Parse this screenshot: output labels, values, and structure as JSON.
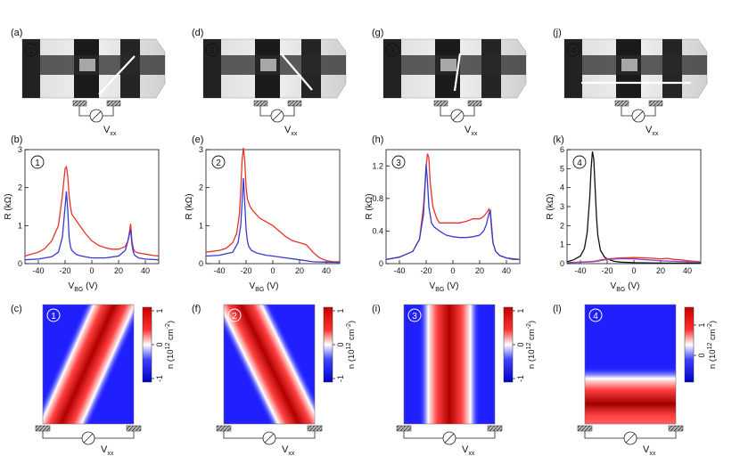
{
  "figure": {
    "columns": [
      {
        "id": 1,
        "device_circle": "1",
        "panel_labels": {
          "device": "(a)",
          "transport": "(b)",
          "map": "(c)"
        },
        "vxx_label": "V",
        "vxx_sub": "xx",
        "chart_data": {
          "type": "line",
          "xlabel": "V",
          "xlabel_sub": "BG",
          "xlabel_unit": " (V)",
          "ylabel": "R (kΩ)",
          "xlim": [
            -50,
            50
          ],
          "ylim": [
            0,
            3
          ],
          "xticks": [
            -40,
            -20,
            0,
            20,
            40
          ],
          "yticks": [
            0,
            1,
            2,
            3
          ],
          "ytick_labels": [
            "0",
            "1",
            "2",
            "3"
          ],
          "series": [
            {
              "name": "red",
              "color": "#e8322a",
              "x": [
                -50,
                -45,
                -40,
                -35,
                -30,
                -25,
                -22,
                -20,
                -19,
                -18,
                -17,
                -16,
                -15,
                -12,
                -10,
                -5,
                0,
                5,
                10,
                15,
                20,
                25,
                27,
                28,
                29,
                30,
                31,
                32,
                35,
                40,
                45,
                50
              ],
              "y": [
                0.2,
                0.25,
                0.3,
                0.4,
                0.6,
                1.0,
                1.8,
                2.5,
                2.55,
                2.3,
                1.8,
                1.5,
                1.3,
                1.15,
                1.05,
                0.8,
                0.6,
                0.48,
                0.42,
                0.38,
                0.38,
                0.45,
                0.6,
                0.8,
                1.05,
                0.6,
                0.4,
                0.32,
                0.28,
                0.25,
                0.22,
                0.2
              ]
            },
            {
              "name": "blue",
              "color": "#3a3ad0",
              "x": [
                -50,
                -40,
                -30,
                -25,
                -22,
                -20,
                -19,
                -18,
                -17,
                -16,
                -15,
                -12,
                -10,
                -5,
                0,
                10,
                20,
                25,
                27,
                28,
                29,
                30,
                31,
                32,
                35,
                40,
                50
              ],
              "y": [
                0.1,
                0.12,
                0.18,
                0.3,
                0.7,
                1.5,
                1.9,
                1.4,
                0.7,
                0.45,
                0.35,
                0.25,
                0.22,
                0.18,
                0.15,
                0.15,
                0.2,
                0.35,
                0.6,
                0.75,
                0.9,
                0.5,
                0.3,
                0.22,
                0.15,
                0.12,
                0.1
              ]
            }
          ]
        },
        "map": {
          "colorbar_ticks": [
            "1",
            "0",
            "-1"
          ],
          "colorbar_label": "n (10",
          "colorbar_exp": "12",
          "colorbar_unit": " cm",
          "colorbar_unit_exp": "-2",
          "colorbar_close": ")"
        }
      },
      {
        "id": 2,
        "device_circle": "2",
        "panel_labels": {
          "device": "(d)",
          "transport": "(e)",
          "map": "(f)"
        },
        "vxx_label": "V",
        "vxx_sub": "xx",
        "chart_data": {
          "type": "line",
          "xlabel": "V",
          "xlabel_sub": "BG",
          "xlabel_unit": " (V)",
          "ylabel": "R (kΩ)",
          "xlim": [
            -50,
            50
          ],
          "ylim": [
            0,
            3
          ],
          "xticks": [
            -40,
            -20,
            0,
            20,
            40
          ],
          "yticks": [
            0,
            1,
            2,
            3
          ],
          "ytick_labels": [
            "0",
            "1",
            "2",
            "3"
          ],
          "series": [
            {
              "name": "red",
              "color": "#e8322a",
              "x": [
                -50,
                -40,
                -35,
                -30,
                -27,
                -25,
                -24,
                -23,
                -22,
                -21,
                -20,
                -19,
                -17,
                -15,
                -10,
                -5,
                0,
                5,
                10,
                15,
                20,
                25,
                30,
                35,
                40,
                45,
                50
              ],
              "y": [
                0.3,
                0.35,
                0.4,
                0.55,
                0.8,
                1.3,
                1.9,
                2.7,
                3.05,
                2.7,
                2.0,
                1.7,
                1.5,
                1.4,
                1.2,
                1.1,
                1.0,
                0.85,
                0.7,
                0.6,
                0.55,
                0.5,
                0.3,
                0.15,
                0.08,
                0.05,
                0.05
              ]
            },
            {
              "name": "blue",
              "color": "#3a3ad0",
              "x": [
                -50,
                -40,
                -30,
                -26,
                -24,
                -23,
                -22,
                -21,
                -20,
                -19,
                -18,
                -16,
                -12,
                -5,
                0,
                10,
                20,
                30,
                40,
                50
              ],
              "y": [
                0.2,
                0.22,
                0.3,
                0.55,
                1.0,
                1.6,
                2.25,
                1.6,
                0.9,
                0.6,
                0.45,
                0.35,
                0.28,
                0.22,
                0.2,
                0.15,
                0.1,
                0.05,
                0.04,
                0.03
              ]
            }
          ]
        },
        "map": {
          "colorbar_ticks": [
            "1",
            "0",
            "-1"
          ],
          "colorbar_label": "n (10",
          "colorbar_exp": "12",
          "colorbar_unit": " cm",
          "colorbar_unit_exp": "-2",
          "colorbar_close": ")"
        }
      },
      {
        "id": 3,
        "device_circle": "3",
        "panel_labels": {
          "device": "(g)",
          "transport": "(h)",
          "map": "(i)"
        },
        "vxx_label": "V",
        "vxx_sub": "xx",
        "chart_data": {
          "type": "line",
          "xlabel": "V",
          "xlabel_sub": "BG",
          "xlabel_unit": " (V)",
          "ylabel": "R (kΩ)",
          "xlim": [
            -50,
            50
          ],
          "ylim": [
            0,
            1.4
          ],
          "xticks": [
            -40,
            -20,
            0,
            20,
            40
          ],
          "yticks": [
            0,
            0.4,
            0.8,
            1.2
          ],
          "ytick_labels": [
            "0",
            "0.4",
            "0.8",
            "1.2"
          ],
          "series": [
            {
              "name": "red",
              "color": "#e8322a",
              "x": [
                -50,
                -40,
                -30,
                -25,
                -22,
                -20,
                -19,
                -18,
                -17,
                -15,
                -12,
                -10,
                -5,
                0,
                5,
                10,
                15,
                20,
                23,
                25,
                27,
                28,
                29,
                30,
                32,
                35,
                40,
                45,
                50
              ],
              "y": [
                0.05,
                0.08,
                0.15,
                0.3,
                0.7,
                1.2,
                1.35,
                1.3,
                1.0,
                0.7,
                0.55,
                0.5,
                0.5,
                0.5,
                0.5,
                0.52,
                0.55,
                0.55,
                0.58,
                0.62,
                0.67,
                0.6,
                0.4,
                0.25,
                0.15,
                0.1,
                0.07,
                0.05,
                0.05
              ]
            },
            {
              "name": "blue",
              "color": "#3a3ad0",
              "x": [
                -50,
                -40,
                -30,
                -25,
                -22,
                -21,
                -20,
                -19,
                -18,
                -16,
                -14,
                -10,
                -5,
                0,
                5,
                10,
                15,
                20,
                23,
                25,
                27,
                28,
                29,
                30,
                32,
                35,
                40,
                50
              ],
              "y": [
                0.05,
                0.08,
                0.15,
                0.3,
                0.6,
                0.9,
                1.22,
                1.0,
                0.7,
                0.5,
                0.45,
                0.4,
                0.35,
                0.33,
                0.32,
                0.32,
                0.33,
                0.35,
                0.4,
                0.48,
                0.62,
                0.65,
                0.45,
                0.25,
                0.15,
                0.1,
                0.07,
                0.05
              ]
            }
          ]
        },
        "map": {
          "colorbar_ticks": [
            "1",
            "0",
            "-1"
          ],
          "colorbar_label": "n (10",
          "colorbar_exp": "12",
          "colorbar_unit": " cm",
          "colorbar_unit_exp": "-2",
          "colorbar_close": ")"
        }
      },
      {
        "id": 4,
        "device_circle": "4",
        "panel_labels": {
          "device": "(j)",
          "transport": "(k)",
          "map": "(l)"
        },
        "vxx_label": "V",
        "vxx_sub": "xx",
        "chart_data": {
          "type": "line",
          "xlabel": "V",
          "xlabel_sub": "BG",
          "xlabel_unit": " (V)",
          "ylabel": "R (kΩ)",
          "xlim": [
            -50,
            50
          ],
          "ylim": [
            0,
            6
          ],
          "xticks": [
            -40,
            -20,
            0,
            20,
            40
          ],
          "yticks": [
            0,
            1,
            2,
            3,
            4,
            5,
            6
          ],
          "ytick_labels": [
            "0",
            "1",
            "2",
            "3",
            "4",
            "5",
            "6"
          ],
          "series": [
            {
              "name": "black",
              "color": "#111111",
              "x": [
                -50,
                -45,
                -40,
                -37,
                -35,
                -33,
                -32,
                -31,
                -30,
                -29,
                -28,
                -27,
                -25,
                -22,
                -20,
                -15,
                -10,
                0,
                10,
                20,
                30,
                40,
                50
              ],
              "y": [
                0.1,
                0.2,
                0.4,
                0.8,
                1.6,
                3.5,
                5.0,
                5.9,
                5.5,
                4.0,
                2.5,
                1.5,
                0.7,
                0.35,
                0.25,
                0.12,
                0.08,
                0.05,
                0.04,
                0.03,
                0.03,
                0.03,
                0.03
              ]
            },
            {
              "name": "red",
              "color": "#e8322a",
              "x": [
                -50,
                -40,
                -30,
                -20,
                -10,
                0,
                10,
                20,
                25,
                30,
                35,
                40,
                50
              ],
              "y": [
                0.05,
                0.08,
                0.12,
                0.25,
                0.3,
                0.32,
                0.3,
                0.25,
                0.28,
                0.22,
                0.2,
                0.15,
                0.1
              ]
            },
            {
              "name": "purple",
              "color": "#8a4ac8",
              "x": [
                -50,
                -40,
                -30,
                -20,
                -10,
                0,
                10,
                20,
                30,
                40,
                50
              ],
              "y": [
                0.05,
                0.07,
                0.1,
                0.22,
                0.26,
                0.25,
                0.2,
                0.15,
                0.12,
                0.1,
                0.08
              ]
            }
          ]
        },
        "map": {
          "colorbar_ticks": [
            "1",
            "0"
          ],
          "colorbar_label": "n (10",
          "colorbar_exp": "12",
          "colorbar_unit": " cm",
          "colorbar_unit_exp": "-2",
          "colorbar_close": ")"
        }
      }
    ]
  }
}
